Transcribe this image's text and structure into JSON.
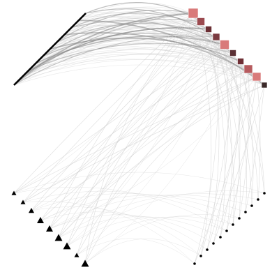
{
  "diagram": {
    "type": "hive-plot",
    "colors": {
      "background": "#ffffff",
      "axis_stroke": "#000000",
      "edge_dark": "#8a8a8a",
      "edge_light": "#cfcfcf",
      "square_dark": "#3b2a2a",
      "square_mid": "#9b4a4f",
      "square_light": "#d97a7a",
      "square_pale": "#e8a0a0",
      "triangle_fill": "#000000",
      "dot_fill": "#000000"
    },
    "axes": [
      {
        "id": "left-axis",
        "node_count": 0
      },
      {
        "id": "right-square-axis",
        "node_count": 14
      },
      {
        "id": "bottom-left-triangle-axis",
        "node_count": 10
      },
      {
        "id": "bottom-right-dot-axis",
        "node_count": 15
      }
    ]
  }
}
